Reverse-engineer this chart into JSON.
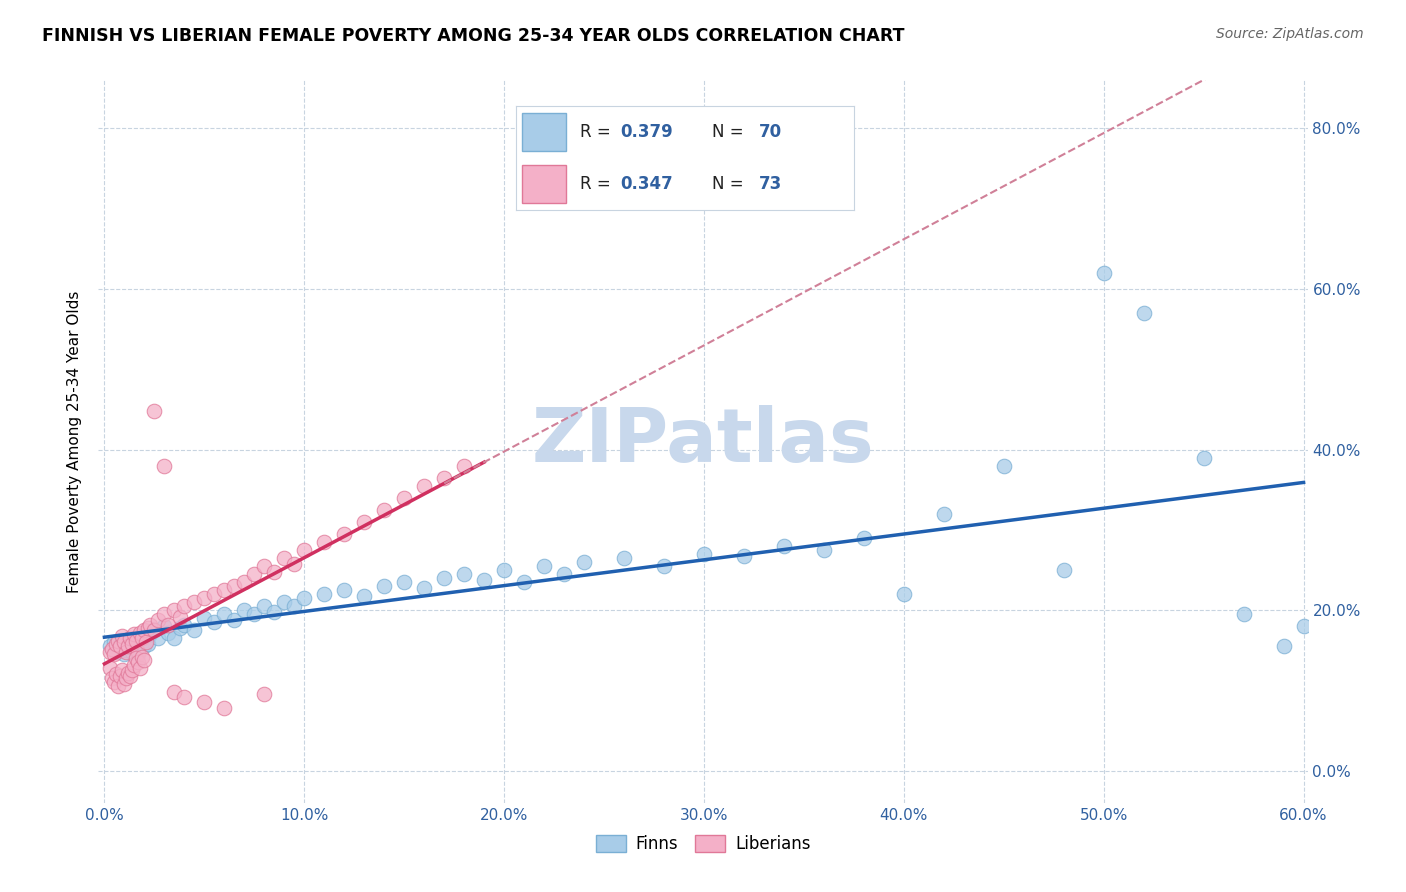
{
  "title": "FINNISH VS LIBERIAN FEMALE POVERTY AMONG 25-34 YEAR OLDS CORRELATION CHART",
  "source": "Source: ZipAtlas.com",
  "ylabel_label": "Female Poverty Among 25-34 Year Olds",
  "xlim": [
    -0.003,
    0.602
  ],
  "ylim": [
    -0.04,
    0.86
  ],
  "finn_color": "#a8cce8",
  "finn_edge_color": "#7aafd4",
  "liberian_color": "#f4b0c8",
  "liberian_edge_color": "#e07898",
  "trend_finn_color": "#2060b0",
  "trend_liberian_solid_color": "#d03060",
  "trend_liberian_dash_color": "#d08098",
  "watermark_color": "#c8d8ec",
  "legend_finn_color": "#a8cce8",
  "legend_finn_edge": "#7aafd4",
  "legend_lib_color": "#f4b0c8",
  "legend_lib_edge": "#e07898",
  "tick_color": "#3060a0",
  "grid_color": "#c8d4e0",
  "xtick_vals": [
    0.0,
    0.1,
    0.2,
    0.3,
    0.4,
    0.5,
    0.6
  ],
  "xtick_labels": [
    "0.0%",
    "10.0%",
    "20.0%",
    "30.0%",
    "40.0%",
    "50.0%",
    "60.0%"
  ],
  "ytick_vals": [
    0.0,
    0.2,
    0.4,
    0.6,
    0.8
  ],
  "ytick_labels": [
    "0.0%",
    "20.0%",
    "40.0%",
    "60.0%",
    "80.0%"
  ],
  "finn_R": "0.379",
  "finn_N": "70",
  "lib_R": "0.347",
  "lib_N": "73",
  "legend_label_finn": "Finns",
  "legend_label_lib": "Liberians",
  "finn_x": [
    0.003,
    0.005,
    0.006,
    0.007,
    0.008,
    0.009,
    0.01,
    0.011,
    0.012,
    0.013,
    0.014,
    0.015,
    0.016,
    0.017,
    0.018,
    0.019,
    0.02,
    0.021,
    0.022,
    0.023,
    0.025,
    0.027,
    0.03,
    0.032,
    0.035,
    0.038,
    0.04,
    0.045,
    0.05,
    0.055,
    0.06,
    0.065,
    0.07,
    0.075,
    0.08,
    0.085,
    0.09,
    0.095,
    0.1,
    0.11,
    0.12,
    0.13,
    0.14,
    0.15,
    0.16,
    0.17,
    0.18,
    0.19,
    0.2,
    0.21,
    0.22,
    0.23,
    0.24,
    0.26,
    0.28,
    0.3,
    0.32,
    0.34,
    0.36,
    0.38,
    0.4,
    0.42,
    0.45,
    0.48,
    0.5,
    0.52,
    0.55,
    0.57,
    0.59,
    0.6
  ],
  "finn_y": [
    0.155,
    0.16,
    0.148,
    0.152,
    0.158,
    0.163,
    0.145,
    0.15,
    0.155,
    0.16,
    0.148,
    0.162,
    0.157,
    0.145,
    0.168,
    0.16,
    0.155,
    0.163,
    0.158,
    0.17,
    0.175,
    0.165,
    0.18,
    0.172,
    0.165,
    0.178,
    0.182,
    0.175,
    0.19,
    0.185,
    0.195,
    0.188,
    0.2,
    0.195,
    0.205,
    0.198,
    0.21,
    0.205,
    0.215,
    0.22,
    0.225,
    0.218,
    0.23,
    0.235,
    0.228,
    0.24,
    0.245,
    0.238,
    0.25,
    0.235,
    0.255,
    0.245,
    0.26,
    0.265,
    0.255,
    0.27,
    0.268,
    0.28,
    0.275,
    0.29,
    0.22,
    0.32,
    0.38,
    0.25,
    0.62,
    0.57,
    0.39,
    0.195,
    0.155,
    0.18
  ],
  "lib_x": [
    0.003,
    0.004,
    0.005,
    0.006,
    0.007,
    0.008,
    0.009,
    0.01,
    0.011,
    0.012,
    0.013,
    0.014,
    0.015,
    0.016,
    0.017,
    0.018,
    0.019,
    0.02,
    0.021,
    0.022,
    0.023,
    0.025,
    0.027,
    0.03,
    0.032,
    0.035,
    0.038,
    0.04,
    0.045,
    0.05,
    0.055,
    0.06,
    0.065,
    0.07,
    0.075,
    0.08,
    0.085,
    0.09,
    0.095,
    0.1,
    0.11,
    0.12,
    0.13,
    0.14,
    0.15,
    0.16,
    0.17,
    0.18,
    0.003,
    0.004,
    0.005,
    0.006,
    0.007,
    0.008,
    0.009,
    0.01,
    0.011,
    0.012,
    0.013,
    0.014,
    0.015,
    0.016,
    0.017,
    0.018,
    0.019,
    0.02,
    0.025,
    0.03,
    0.035,
    0.04,
    0.05,
    0.06,
    0.08
  ],
  "lib_y": [
    0.148,
    0.152,
    0.145,
    0.158,
    0.162,
    0.155,
    0.168,
    0.16,
    0.148,
    0.155,
    0.165,
    0.158,
    0.17,
    0.162,
    0.148,
    0.172,
    0.165,
    0.175,
    0.16,
    0.178,
    0.182,
    0.175,
    0.188,
    0.195,
    0.182,
    0.2,
    0.192,
    0.205,
    0.21,
    0.215,
    0.22,
    0.225,
    0.23,
    0.235,
    0.245,
    0.255,
    0.248,
    0.265,
    0.258,
    0.275,
    0.285,
    0.295,
    0.31,
    0.325,
    0.34,
    0.355,
    0.365,
    0.38,
    0.128,
    0.115,
    0.11,
    0.12,
    0.105,
    0.118,
    0.125,
    0.108,
    0.115,
    0.122,
    0.118,
    0.125,
    0.132,
    0.14,
    0.135,
    0.128,
    0.142,
    0.138,
    0.448,
    0.38,
    0.098,
    0.092,
    0.085,
    0.078,
    0.095
  ]
}
